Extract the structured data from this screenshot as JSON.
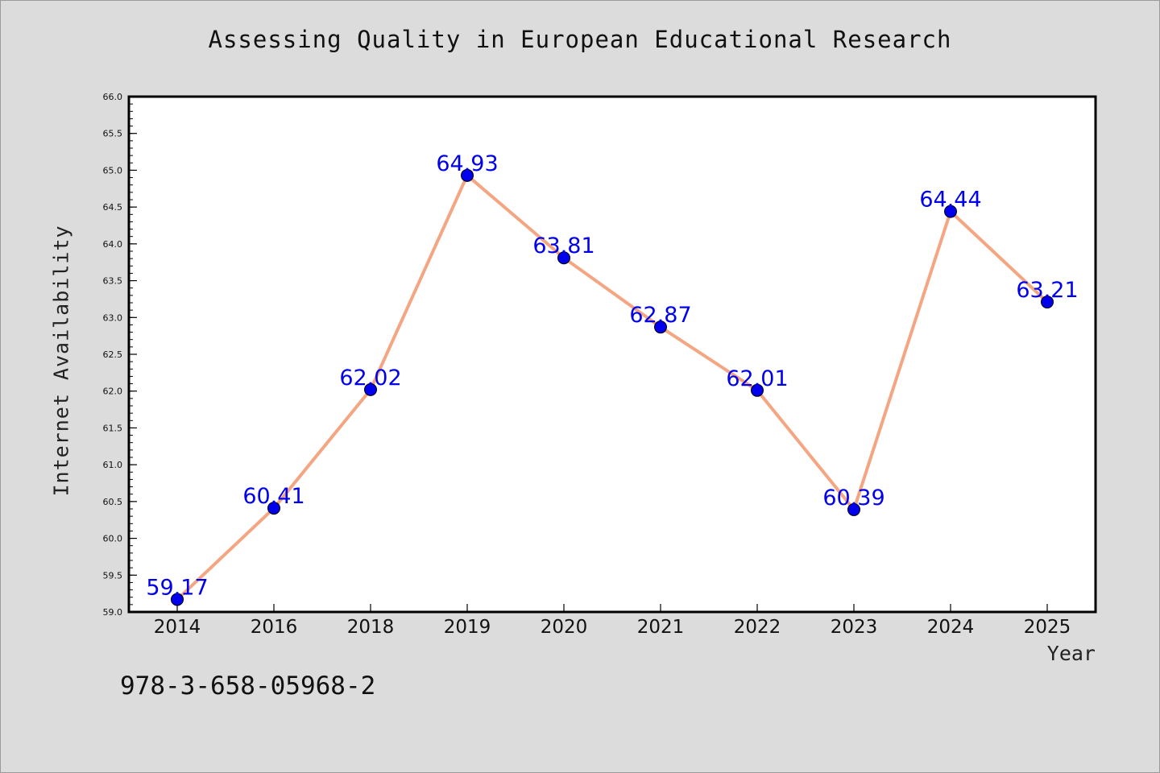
{
  "chart_data": {
    "type": "line",
    "title": "Assessing Quality in European Educational Research",
    "xlabel": "Year",
    "ylabel": "Internet Availability",
    "categories": [
      "2014",
      "2016",
      "2018",
      "2019",
      "2020",
      "2021",
      "2022",
      "2023",
      "2024",
      "2025"
    ],
    "series": [
      {
        "values": [
          59.17,
          60.41,
          62.02,
          64.93,
          63.81,
          62.87,
          62.01,
          60.39,
          64.44,
          63.21
        ]
      }
    ],
    "data_labels": [
      "59.17",
      "60.41",
      "62.02",
      "64.93",
      "63.81",
      "62.87",
      "62.01",
      "60.39",
      "64.44",
      "63.21"
    ],
    "ylim": [
      59.0,
      66.0
    ],
    "yticks": [
      "59.0",
      "59.5",
      "60.0",
      "60.5",
      "61.0",
      "61.5",
      "62.0",
      "62.5",
      "63.0",
      "63.5",
      "64.0",
      "64.5",
      "65.0",
      "65.5",
      "66.0"
    ],
    "grid": false,
    "line_color": "#f4a582",
    "marker_color": "#0000ee",
    "label_color": "#0000ee",
    "background": "#dcdcdc",
    "plot_background": "#ffffff"
  },
  "footer_text": "978-3-658-05968-2"
}
